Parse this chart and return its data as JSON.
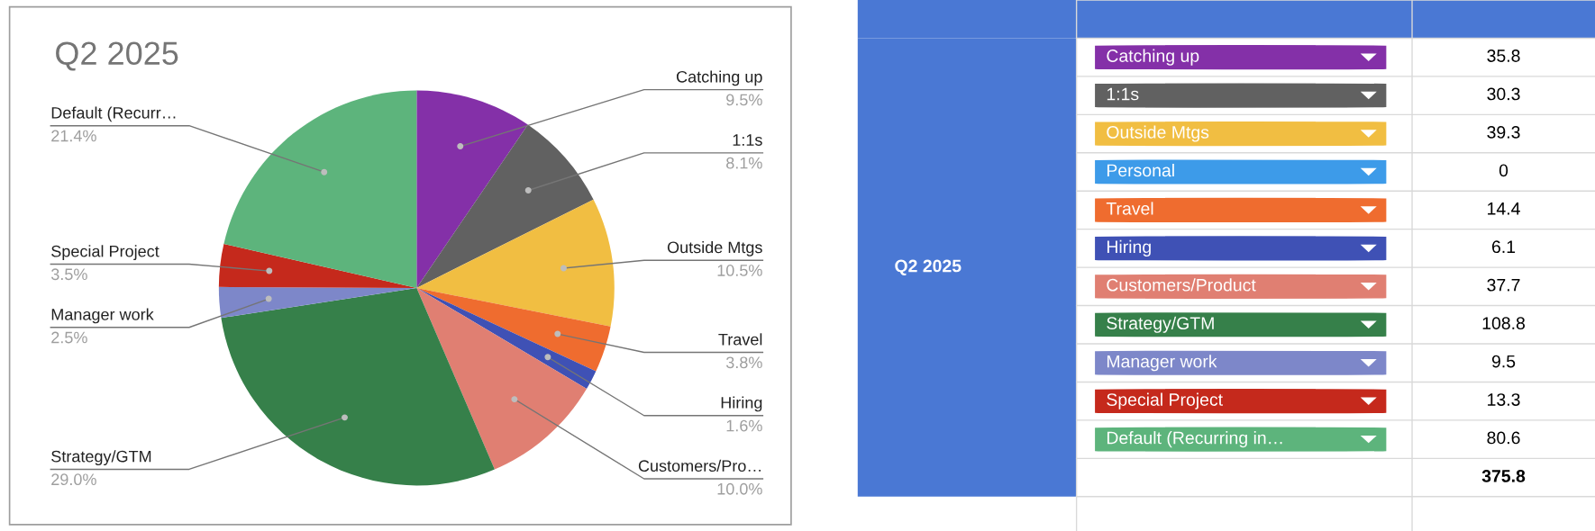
{
  "chart_data": [
    {
      "type": "pie",
      "title": "Q2 2025",
      "categories": [
        "Catching up",
        "1:1s",
        "Outside Mtgs",
        "Travel",
        "Hiring",
        "Customers/Pro…",
        "Strategy/GTM",
        "Manager work",
        "Special Project",
        "Default (Recurr…"
      ],
      "values": [
        9.5,
        8.1,
        10.5,
        3.8,
        1.6,
        10.0,
        29.0,
        2.5,
        3.5,
        21.4
      ],
      "value_labels": [
        "9.5%",
        "8.1%",
        "10.5%",
        "3.8%",
        "1.6%",
        "10.0%",
        "29.0%",
        "2.5%",
        "3.5%",
        "21.4%"
      ],
      "colors": [
        "#8430a8",
        "#616161",
        "#f1be42",
        "#ef6c2f",
        "#3f51b5",
        "#e07f72",
        "#36804a",
        "#7d87c9",
        "#c5291c",
        "#5db47c"
      ]
    },
    {
      "type": "other",
      "title": "Q2 2025",
      "categories": [
        "Catching up",
        "1:1s",
        "Outside Mtgs",
        "Personal",
        "Travel",
        "Hiring",
        "Customers/Product",
        "Strategy/GTM",
        "Manager work",
        "Special Project",
        "Default (Recurring in…"
      ],
      "values": [
        35.8,
        30.3,
        39.3,
        0,
        14.4,
        6.1,
        37.7,
        108.8,
        9.5,
        13.3,
        80.6
      ],
      "colors": [
        "#8430a8",
        "#616161",
        "#f1be42",
        "#3d9be9",
        "#ef6c2f",
        "#3f51b5",
        "#e07f72",
        "#36804a",
        "#7d87c9",
        "#c5291c",
        "#5db47c"
      ],
      "data_labels": true,
      "annotations": [
        "375.8"
      ]
    }
  ]
}
